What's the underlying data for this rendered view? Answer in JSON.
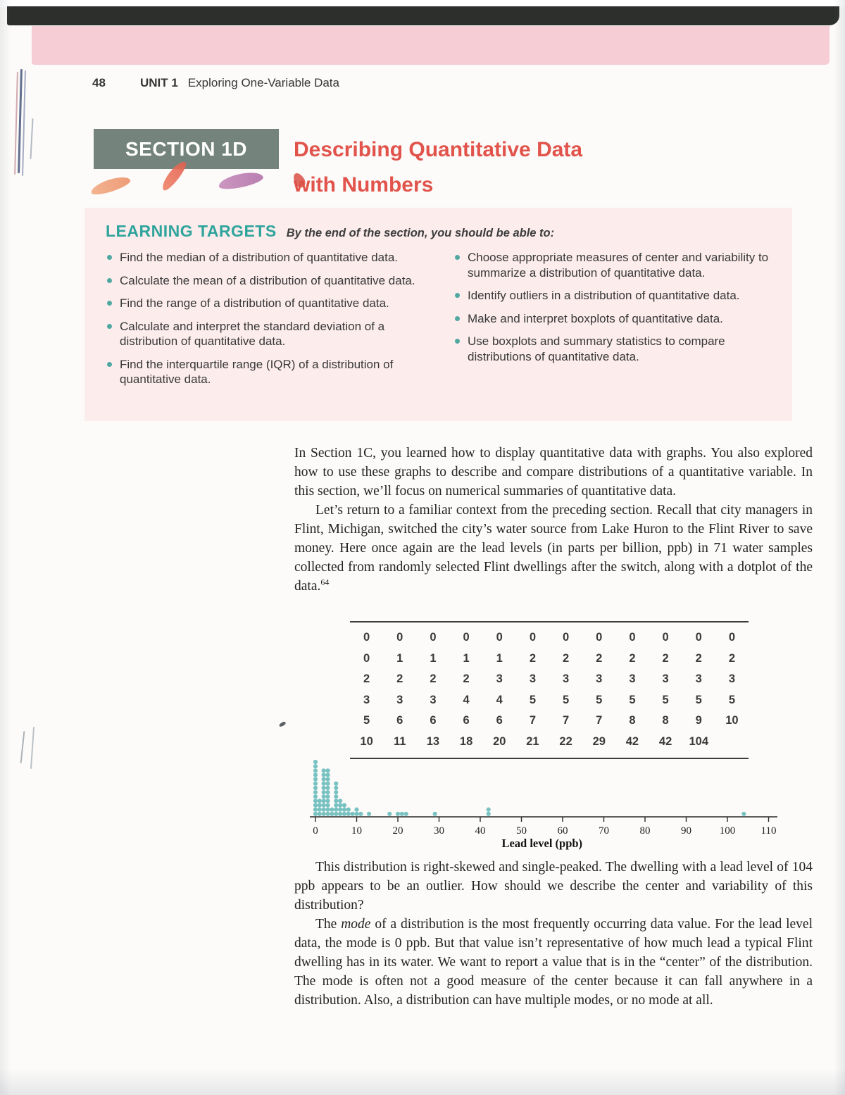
{
  "page": {
    "number": "48",
    "unit_label": "UNIT 1",
    "unit_title": "Exploring One-Variable Data"
  },
  "section": {
    "badge": "SECTION 1D",
    "title_line1": "Describing Quantitative Data",
    "title_line2": "with Numbers"
  },
  "learning_targets": {
    "heading": "LEARNING TARGETS",
    "tagline": "By the end of the section, you should be able to:",
    "left_items": [
      "Find the median of a distribution of quantitative data.",
      "Calculate the mean of a distribution of quantitative data.",
      "Find the range of a distribution of quantitative data.",
      "Calculate and interpret the standard deviation of a distribution of quantitative data.",
      "Find the interquartile range (IQR) of a distribution of quantitative data."
    ],
    "right_items": [
      "Choose appropriate measures of center and variability to summarize a distribution of quantitative data.",
      "Identify outliers in a distribution of quantitative data.",
      "Make and interpret boxplots of quantitative data.",
      "Use boxplots and summary statistics to compare distributions of quantitative data."
    ]
  },
  "paragraphs": {
    "p1": "In Section 1C, you learned how to display quantitative data with graphs. You also explored how to use these graphs to describe and compare distributions of a quantitative variable. In this section, we’ll focus on numerical summaries of quantitative data.",
    "p2": "Let’s return to a familiar context from the preceding section. Recall that city managers in Flint, Michigan, switched the city’s water source from Lake Huron to the Flint River to save money. Here once again are the lead levels (in parts per billion, ppb) in 71 water samples collected from randomly selected Flint dwellings after the switch, along with a dotplot of the data.",
    "p2_footnote": "64",
    "p3": "This distribution is right-skewed and single-peaked. The dwelling with a lead level of 104 ppb appears to be an outlier. How should we describe the center and variability of this distribution?",
    "p4_lead": "The ",
    "p4_italic": "mode",
    "p4_rest": " of a distribution is the most frequently occurring data value. For the lead level data, the mode is 0 ppb. But that value isn’t representative of how much lead a typical Flint dwelling has in its water. We want to report a value that is in the “center” of the distribution. The mode is often not a good measure of the center because it can fall anywhere in a distribution. Also, a distribution can have multiple modes, or no mode at all."
  },
  "data_table": {
    "rows": [
      [
        "0",
        "0",
        "0",
        "0",
        "0",
        "0",
        "0",
        "0",
        "0",
        "0",
        "0",
        "0"
      ],
      [
        "0",
        "1",
        "1",
        "1",
        "1",
        "2",
        "2",
        "2",
        "2",
        "2",
        "2",
        "2"
      ],
      [
        "2",
        "2",
        "2",
        "2",
        "3",
        "3",
        "3",
        "3",
        "3",
        "3",
        "3",
        "3"
      ],
      [
        "3",
        "3",
        "3",
        "4",
        "4",
        "5",
        "5",
        "5",
        "5",
        "5",
        "5",
        "5"
      ],
      [
        "5",
        "6",
        "6",
        "6",
        "6",
        "7",
        "7",
        "7",
        "8",
        "8",
        "9",
        "10"
      ],
      [
        "10",
        "11",
        "13",
        "18",
        "20",
        "21",
        "22",
        "29",
        "42",
        "42",
        "104"
      ]
    ]
  },
  "chart_data": {
    "type": "dotplot",
    "title": "",
    "xlabel": "Lead level (ppb)",
    "xlim": [
      0,
      112
    ],
    "x_ticks": [
      0,
      10,
      20,
      30,
      40,
      50,
      60,
      70,
      80,
      90,
      100,
      110
    ],
    "dot_color": "#79c2c2",
    "points": [
      {
        "v": 0,
        "n": 13
      },
      {
        "v": 1,
        "n": 4
      },
      {
        "v": 2,
        "n": 11
      },
      {
        "v": 3,
        "n": 11
      },
      {
        "v": 4,
        "n": 2
      },
      {
        "v": 5,
        "n": 8
      },
      {
        "v": 6,
        "n": 4
      },
      {
        "v": 7,
        "n": 3
      },
      {
        "v": 8,
        "n": 2
      },
      {
        "v": 9,
        "n": 1
      },
      {
        "v": 10,
        "n": 2
      },
      {
        "v": 11,
        "n": 1
      },
      {
        "v": 13,
        "n": 1
      },
      {
        "v": 18,
        "n": 1
      },
      {
        "v": 20,
        "n": 1
      },
      {
        "v": 21,
        "n": 1
      },
      {
        "v": 22,
        "n": 1
      },
      {
        "v": 29,
        "n": 1
      },
      {
        "v": 42,
        "n": 2
      },
      {
        "v": 104,
        "n": 1
      }
    ]
  },
  "colors": {
    "top_bar": "#2d2f2c",
    "pink_band": "#f6ccd5",
    "section_badge_bg": "#74847d",
    "section_title_red": "#e1534b",
    "learning_targets_teal": "#2fa49c",
    "lt_panel_bg": "#fcecec",
    "dot_teal": "#79c2c2"
  }
}
